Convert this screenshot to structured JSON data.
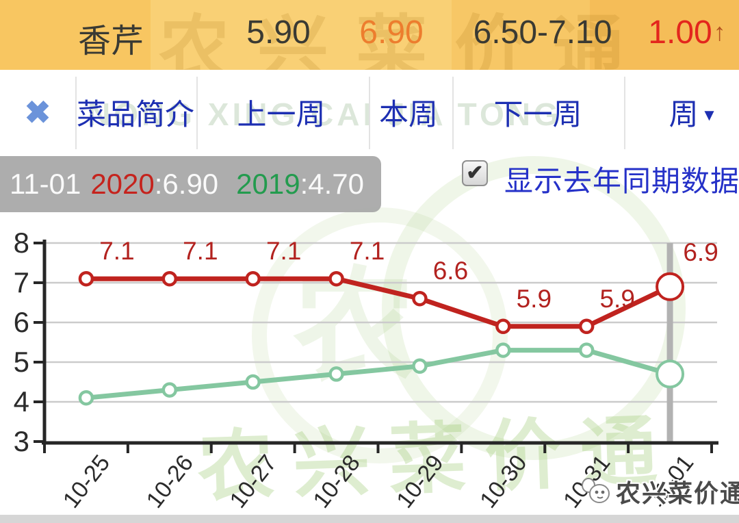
{
  "header": {
    "name": "香芹",
    "value_left": "5.90",
    "value_current": "6.90",
    "range": "6.50-7.10",
    "change": "1.00",
    "change_arrow": "↑"
  },
  "nav": {
    "close_icon": "✖",
    "items": [
      "菜品简介",
      "上一周",
      "本周",
      "下一周"
    ],
    "period": "周",
    "caret_icon": "▼"
  },
  "info": {
    "date": "11-01",
    "year1": "2020",
    "colon1": ":",
    "value1": "6.90",
    "year2": "2019",
    "colon2": ":",
    "value2": "4.70",
    "checkbox_checked": true,
    "check_icon": "✔",
    "checkbox_label": "显示去年同期数据"
  },
  "chart_data": {
    "type": "line",
    "categories": [
      "10-25",
      "10-26",
      "10-27",
      "10-28",
      "10-29",
      "10-30",
      "10-31",
      "11-01"
    ],
    "series": [
      {
        "name": "2020",
        "color": "#c0231f",
        "label_color": "#b2221f",
        "values": [
          7.1,
          7.1,
          7.1,
          7.1,
          6.6,
          5.9,
          5.9,
          6.9
        ],
        "labels_shown": true
      },
      {
        "name": "2019",
        "color": "#84c7a0",
        "label_color": "#84c7a0",
        "values": [
          4.1,
          4.3,
          4.5,
          4.7,
          4.9,
          5.3,
          5.3,
          4.7
        ],
        "labels_shown": false
      }
    ],
    "ylim": [
      3,
      8
    ],
    "ytick_step": 1,
    "yticks": [
      3,
      4,
      5,
      6,
      7,
      8
    ],
    "grid": true,
    "legend_position": "none",
    "highlight_index": 7,
    "grid_color": "#cbcbcb",
    "axis_color": "#262626",
    "highlight_line_color": "#b2b2b2",
    "tick_label_color": "#2b2b2b"
  },
  "watermark": {
    "brand": "农兴菜价通",
    "latin": "NONG XING CAI JIA TONG",
    "emblem_char": "农"
  },
  "footer": {
    "brand": "农兴菜价通"
  }
}
